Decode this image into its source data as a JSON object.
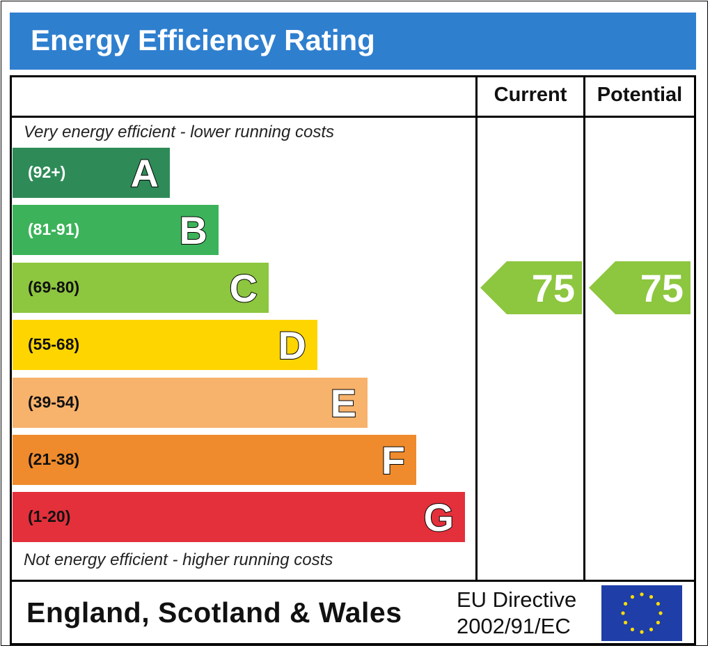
{
  "title": "Energy Efficiency Rating",
  "columns": {
    "current": "Current",
    "potential": "Potential"
  },
  "captions": {
    "top": "Very energy efficient - lower running costs",
    "bottom": "Not energy efficient - higher running costs"
  },
  "footer": {
    "region": "England, Scotland & Wales",
    "directive_line1": "EU Directive",
    "directive_line2": "2002/91/EC",
    "flag_icon": "eu-flag-icon"
  },
  "chart_data": {
    "type": "bar",
    "categories": [
      "A",
      "B",
      "C",
      "D",
      "E",
      "F",
      "G"
    ],
    "ranges": [
      "(92+)",
      "(81-91)",
      "(69-80)",
      "(55-68)",
      "(39-54)",
      "(21-38)",
      "(1-20)"
    ],
    "colors": [
      "#2e8b57",
      "#3cb35a",
      "#8dc63f",
      "#ffd500",
      "#f7b26b",
      "#ef8b2c",
      "#e3303b"
    ],
    "range_text_colors": [
      "#ffffff",
      "#ffffff",
      "#111111",
      "#111111",
      "#111111",
      "#111111",
      "#111111"
    ],
    "current": {
      "value": 75,
      "band": "C"
    },
    "potential": {
      "value": 75,
      "band": "C"
    }
  }
}
